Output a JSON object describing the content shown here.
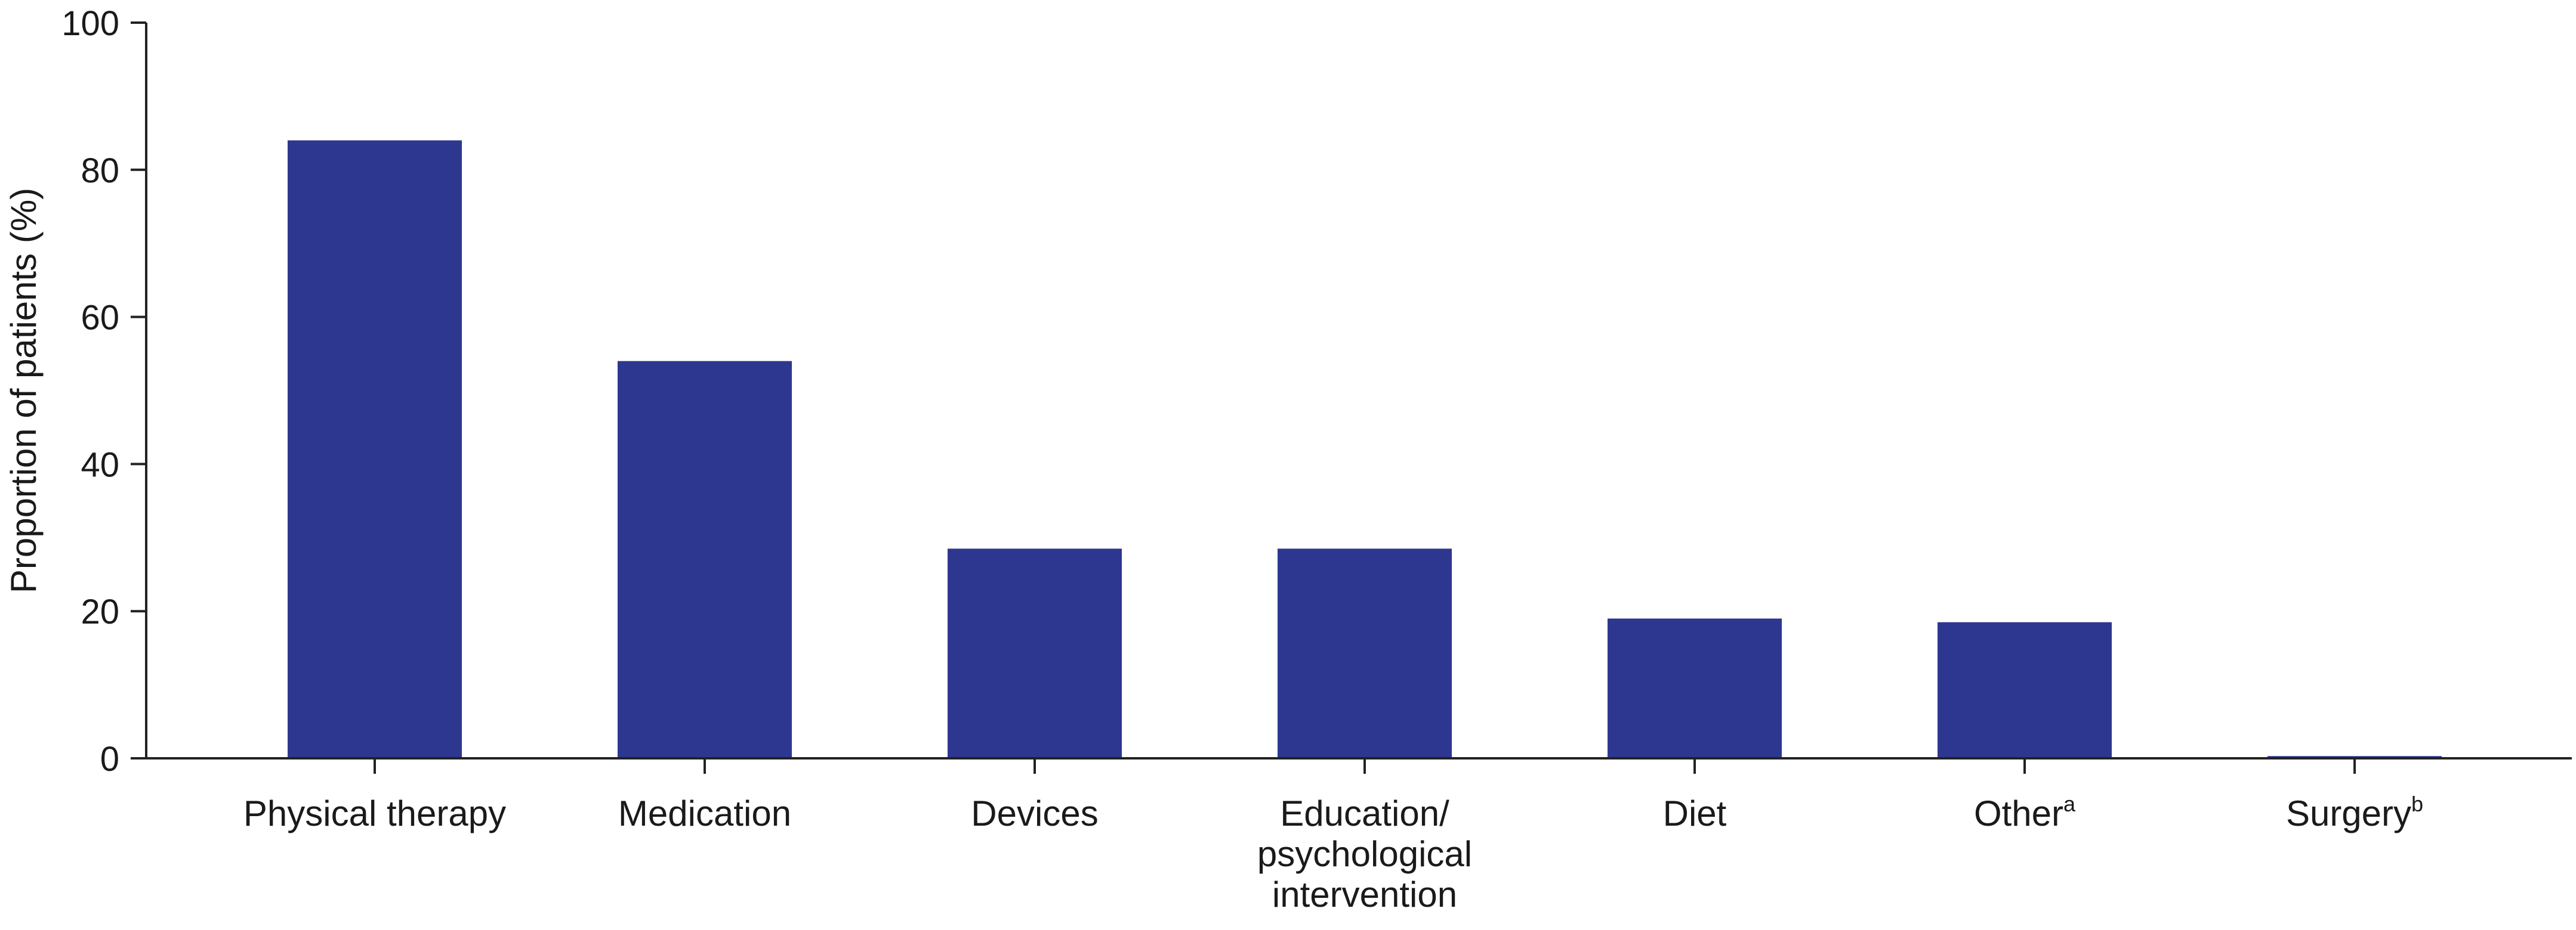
{
  "chart_data": {
    "type": "bar",
    "title": "",
    "xlabel": "",
    "ylabel": "Proportion of patients (%)",
    "ylim": [
      0,
      100
    ],
    "yticks": [
      "0",
      "20",
      "40",
      "60",
      "80",
      "100"
    ],
    "grid": false,
    "bar_color": "#2e3790",
    "categories": [
      {
        "lines": [
          "Physical therapy"
        ],
        "sup": ""
      },
      {
        "lines": [
          "Medication"
        ],
        "sup": ""
      },
      {
        "lines": [
          "Devices"
        ],
        "sup": ""
      },
      {
        "lines": [
          "Education/",
          "psychological",
          "intervention"
        ],
        "sup": ""
      },
      {
        "lines": [
          "Diet"
        ],
        "sup": ""
      },
      {
        "lines": [
          "Other"
        ],
        "sup": "a"
      },
      {
        "lines": [
          "Surgery"
        ],
        "sup": "b"
      }
    ],
    "values": [
      84,
      54,
      28.5,
      28.5,
      19,
      18.5,
      0.3
    ]
  }
}
